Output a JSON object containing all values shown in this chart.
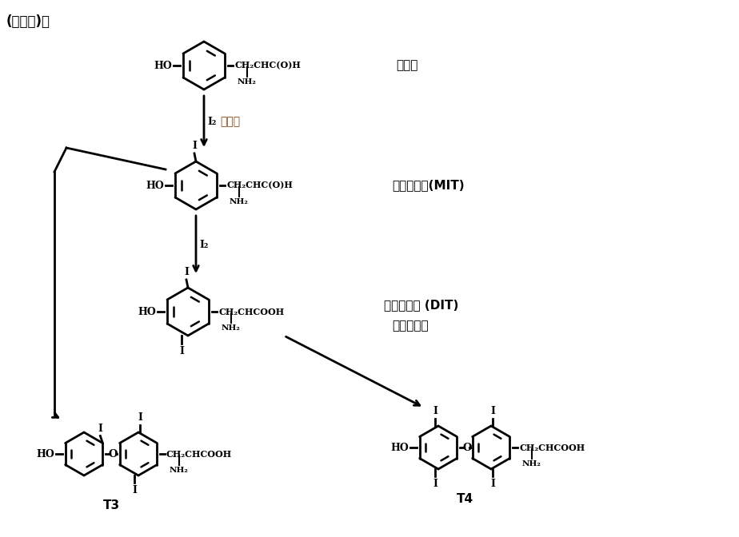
{
  "bg_color": "#ffffff",
  "text_color": "#000000",
  "highlight_color": "#8B4513",
  "fig_width": 9.24,
  "fig_height": 6.72,
  "header_text": "(见下图)。",
  "tyrosine_label": "酪氨酸",
  "step1_reagent": "I₂",
  "step1_label": "碘单质",
  "MIT_label": "一碘酪氨酸(MIT)",
  "step2_reagent": "I₂",
  "DIT_label": "二碘酪氨酸 (DIT)",
  "coupling_label": "二分子聚合",
  "T3_label": "T3",
  "T4_label": "T4",
  "tyrosine_chain": "CH₂CHC(O)H",
  "MIT_chain": "CH₂CHC(O)H",
  "DIT_chain": "CH₂CHCOOH",
  "T3_chain": "CH₂CHCOOH",
  "T4_chain": "CH₂CHCOOH"
}
